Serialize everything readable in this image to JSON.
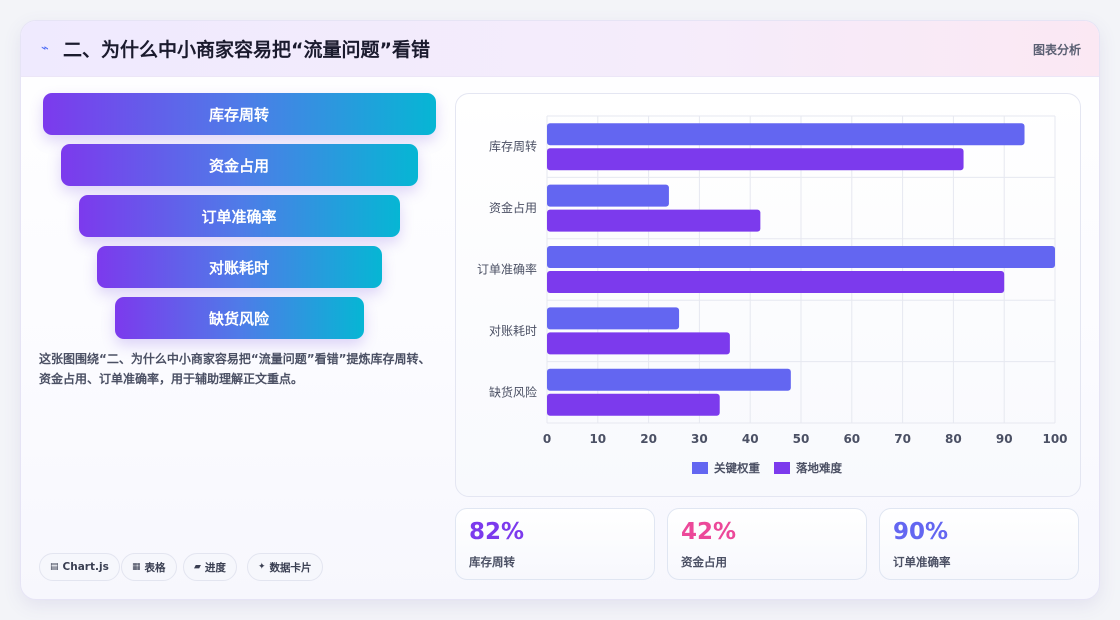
{
  "header": {
    "icon": "bolt-icon",
    "title": "二、为什么中小商家容易把“流量问题”看错",
    "tag": "图表分析"
  },
  "funnel": {
    "steps": [
      "库存周转",
      "资金占用",
      "订单准确率",
      "对账耗时",
      "缺货风险"
    ]
  },
  "description": "这张图围绕“二、为什么中小商家容易把“流量问题”看错”提炼库存周转、资金占用、订单准确率，用于辅助理解正文重点。",
  "chips": [
    {
      "icon": "table-icon",
      "label": "Chart.js"
    },
    {
      "icon": "grid-icon",
      "label": "表格"
    },
    {
      "icon": "progress-icon",
      "label": "进度"
    },
    {
      "icon": "sparkle-icon",
      "label": "数据卡片"
    }
  ],
  "stats": [
    {
      "value": "82%",
      "label": "库存周转",
      "color": "#7c3aed"
    },
    {
      "value": "42%",
      "label": "资金占用",
      "color": "#ec4899"
    },
    {
      "value": "90%",
      "label": "订单准确率",
      "color": "#6366f1"
    }
  ],
  "chart_data": {
    "type": "bar",
    "orientation": "horizontal",
    "categories": [
      "库存周转",
      "资金占用",
      "订单准确率",
      "对账耗时",
      "缺货风险"
    ],
    "series": [
      {
        "name": "关键权重",
        "values": [
          94,
          24,
          100,
          26,
          48
        ],
        "color": "#6366f1"
      },
      {
        "name": "落地难度",
        "values": [
          82,
          42,
          90,
          36,
          34
        ],
        "color": "#7c3aed"
      }
    ],
    "xlim": [
      0,
      100
    ],
    "xticks": [
      0,
      10,
      20,
      30,
      40,
      50,
      60,
      70,
      80,
      90,
      100
    ],
    "grid": true,
    "legend": "bottom"
  }
}
